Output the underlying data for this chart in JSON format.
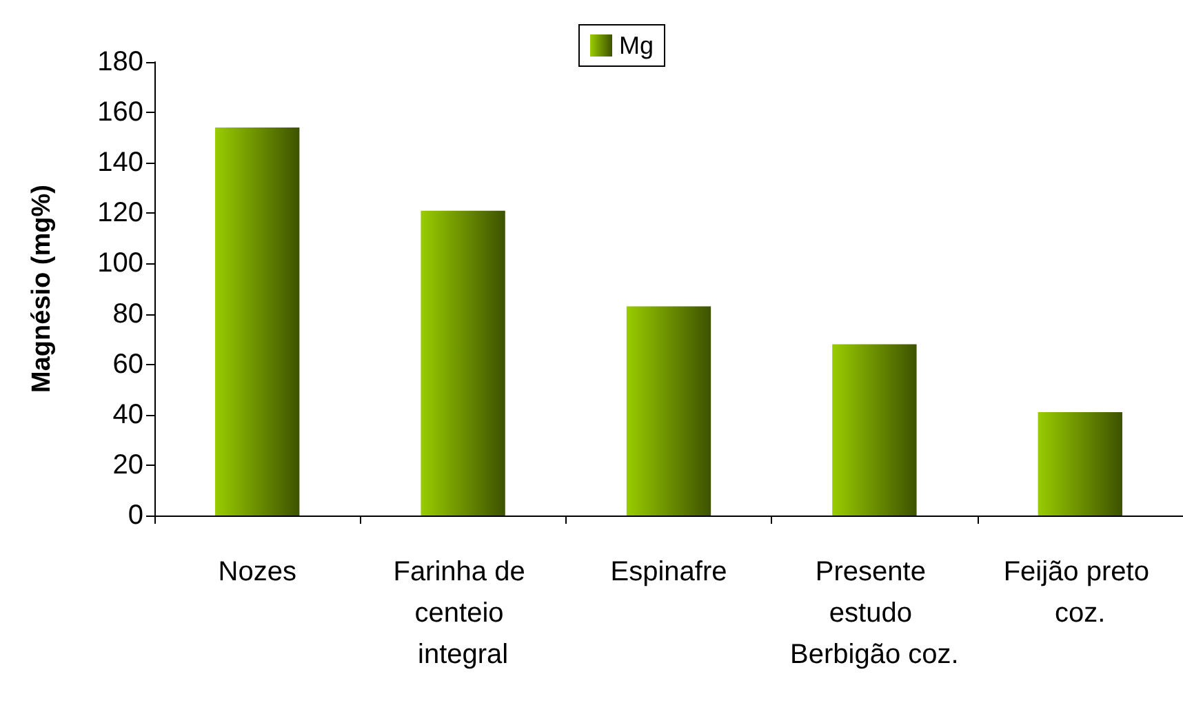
{
  "chart_data": {
    "type": "bar",
    "ylabel": "Magnésio (mg%)",
    "categories": [
      "Nozes",
      "Farinha de centeio integral",
      "Espinafre",
      "Presente estudo Berbigão coz.",
      "Feijão preto coz."
    ],
    "series": [
      {
        "name": "Mg",
        "color": "#99cc00",
        "values": [
          154,
          121,
          83,
          68,
          41
        ]
      }
    ],
    "ylim": [
      0,
      180
    ],
    "yticks": [
      0,
      20,
      40,
      60,
      80,
      100,
      120,
      140,
      160,
      180
    ],
    "grid": false,
    "legend": "top"
  }
}
